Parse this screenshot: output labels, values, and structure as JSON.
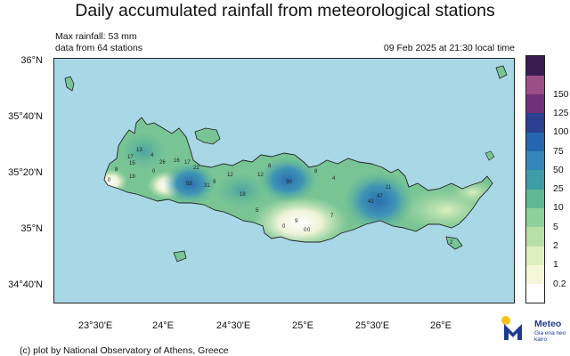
{
  "title": "Daily accumulated rainfall from meteorological stations",
  "max_rainfall": "Max rainfall: 53 mm",
  "stations_note": "data from 64 stations",
  "timestamp": "09 Feb 2025 at 21:30 local time",
  "credit": "(c) plot by National Observatory of Athens, Greece",
  "logo": {
    "name": "Meteo",
    "tagline": "Gia ena neo kairo"
  },
  "y_axis_labels": [
    "36°N",
    "35°40'N",
    "35°20'N",
    "35°N",
    "34°40'N"
  ],
  "x_axis_labels": [
    "23°30'E",
    "24°E",
    "24°30'E",
    "25°E",
    "25°30'E",
    "26°E"
  ],
  "legend": {
    "levels": [
      "0.2",
      "1",
      "2",
      "5",
      "10",
      "25",
      "50",
      "75",
      "100",
      "125",
      "150"
    ],
    "colors": [
      "#ffffff",
      "#f6f7d9",
      "#ddefbf",
      "#b7e0a6",
      "#8ed09a",
      "#60b894",
      "#3f9ba7",
      "#3488b8",
      "#2467ae",
      "#2c3f91",
      "#70317a",
      "#9c4d86",
      "#3a1c52"
    ]
  },
  "colors": {
    "sea": "#a8d7e6",
    "land_base": "#78c495",
    "dry_area": "#eef3d8",
    "heavy_rain": "#2e78b4"
  },
  "station_values": [
    {
      "label": "13"
    },
    {
      "label": "17"
    },
    {
      "label": "15"
    },
    {
      "label": "4"
    },
    {
      "label": "26"
    },
    {
      "label": "16"
    },
    {
      "label": "17"
    },
    {
      "label": "22"
    },
    {
      "label": "8"
    },
    {
      "label": "18"
    },
    {
      "label": "0"
    },
    {
      "label": "0"
    },
    {
      "label": "53"
    },
    {
      "label": "31"
    },
    {
      "label": "9"
    },
    {
      "label": "12"
    },
    {
      "label": "12"
    },
    {
      "label": "18"
    },
    {
      "label": "8"
    },
    {
      "label": "30"
    },
    {
      "label": "8"
    },
    {
      "label": "4"
    },
    {
      "label": "47"
    },
    {
      "label": "41"
    },
    {
      "label": "11"
    },
    {
      "label": "7"
    },
    {
      "label": "5"
    },
    {
      "label": "0"
    },
    {
      "label": "9"
    },
    {
      "label": "0"
    },
    {
      "label": "0"
    },
    {
      "label": "2"
    }
  ]
}
